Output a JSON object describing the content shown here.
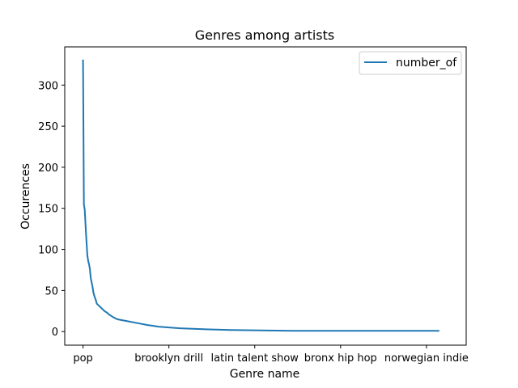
{
  "chart_data": {
    "type": "line",
    "title": "Genres among artists",
    "xlabel": "Genre name",
    "ylabel": "Occurences",
    "legend": {
      "position": "top-right",
      "entries": [
        "number_of"
      ]
    },
    "grid": false,
    "ylim": [
      -16.5,
      346.5
    ],
    "xlim": [
      -21.3,
      446.3
    ],
    "x_ticks": [
      {
        "pos": 0,
        "label": "pop"
      },
      {
        "pos": 100,
        "label": "brooklyn drill"
      },
      {
        "pos": 200,
        "label": "latin talent show"
      },
      {
        "pos": 300,
        "label": "bronx hip hop"
      },
      {
        "pos": 400,
        "label": "norwegian indie"
      }
    ],
    "y_ticks": [
      0,
      50,
      100,
      150,
      200,
      250,
      300
    ],
    "series": [
      {
        "name": "number_of",
        "color": "#1f77b4",
        "points": [
          [
            0,
            330
          ],
          [
            1,
            155
          ],
          [
            2,
            148
          ],
          [
            3,
            128
          ],
          [
            4,
            110
          ],
          [
            5,
            93
          ],
          [
            6,
            86
          ],
          [
            7,
            82
          ],
          [
            8,
            76
          ],
          [
            9,
            65
          ],
          [
            10,
            60
          ],
          [
            11,
            55
          ],
          [
            12,
            48
          ],
          [
            13,
            44
          ],
          [
            14,
            41
          ],
          [
            15,
            38
          ],
          [
            16,
            34
          ],
          [
            18,
            32
          ],
          [
            20,
            30
          ],
          [
            22,
            28
          ],
          [
            25,
            25
          ],
          [
            28,
            23
          ],
          [
            30,
            21
          ],
          [
            33,
            19
          ],
          [
            36,
            17
          ],
          [
            40,
            15
          ],
          [
            45,
            14
          ],
          [
            50,
            13
          ],
          [
            55,
            12
          ],
          [
            60,
            11
          ],
          [
            65,
            10
          ],
          [
            70,
            9
          ],
          [
            75,
            8
          ],
          [
            82,
            7
          ],
          [
            88,
            6
          ],
          [
            100,
            5
          ],
          [
            113,
            4
          ],
          [
            137,
            3
          ],
          [
            172,
            2
          ],
          [
            243,
            1
          ],
          [
            414,
            1
          ]
        ]
      }
    ]
  }
}
